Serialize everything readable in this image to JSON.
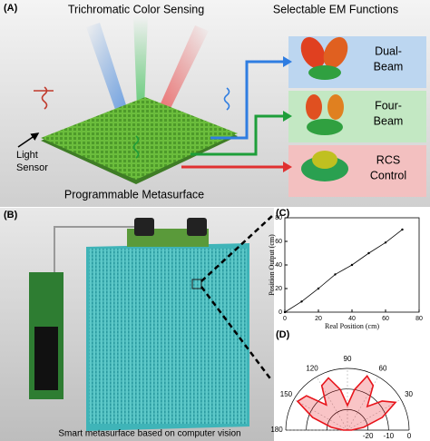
{
  "panel_a": {
    "label": "(A)",
    "title_left": "Trichromatic Color Sensing",
    "title_right": "Selectable EM Functions",
    "light_sensor": [
      "Light",
      "Sensor"
    ],
    "surface": "Programmable Metasurface",
    "functions": [
      [
        "Dual-",
        "Beam"
      ],
      [
        "Four-",
        "Beam"
      ],
      [
        "RCS",
        "Control"
      ]
    ]
  },
  "panel_b": {
    "label": "(B)",
    "caption": "Smart metasurface based on computer vision"
  },
  "chart_data": [
    {
      "type": "line",
      "label": "(C)",
      "xlabel": "Real Position (cm)",
      "ylabel": "Position Output (cm)",
      "x": [
        0,
        10,
        20,
        30,
        40,
        50,
        60,
        70
      ],
      "values": [
        0,
        9,
        20,
        32,
        40,
        50,
        59,
        70
      ],
      "color": "#000000",
      "xlim": [
        0,
        80
      ],
      "xticks": [
        0,
        20,
        40,
        60,
        80
      ],
      "ylim": [
        0,
        80
      ],
      "yticks": [
        0,
        20,
        40,
        60,
        80
      ]
    },
    {
      "type": "polar",
      "label": "(D)",
      "theta": [
        0,
        10,
        20,
        30,
        40,
        50,
        60,
        70,
        80,
        90,
        100,
        110,
        120,
        130,
        140,
        150,
        160,
        170,
        180
      ],
      "values": [
        -28,
        -22,
        -12,
        -3,
        -8,
        -15,
        -5,
        -2,
        -10,
        -18,
        -10,
        -3,
        -5,
        -14,
        -4,
        -2,
        -12,
        -22,
        -28
      ],
      "color": "#e8141b",
      "rlim": [
        -30,
        0
      ],
      "rticks": [
        -20,
        -10,
        0
      ],
      "thetaticks": [
        30,
        60,
        90,
        120,
        150,
        180
      ]
    }
  ]
}
